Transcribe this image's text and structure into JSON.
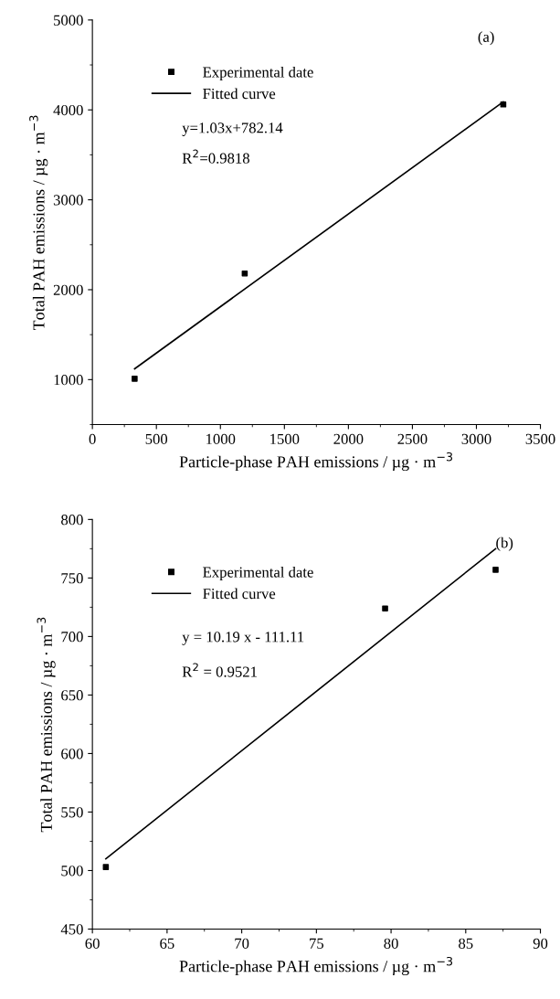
{
  "chart_data": [
    {
      "type": "scatter",
      "xlabel": "Particle-phase PAH emissions / µg · m$^{−3}$",
      "ylabel": "Total PAH emissions / µg · m$^{−3}$",
      "xlim": [
        0,
        3500
      ],
      "xticks": [
        0,
        500,
        1000,
        1500,
        2000,
        2500,
        3000,
        3500
      ],
      "ylim": [
        500,
        5000
      ],
      "yticks": [
        1000,
        2000,
        3000,
        4000,
        5000
      ],
      "grid": false,
      "legend": "top left",
      "series": [
        {
          "name": "Experimental date",
          "marker": "square",
          "color": "#000000",
          "x": [
            330,
            1190,
            3210
          ],
          "values": [
            1010,
            2180,
            4060
          ]
        },
        {
          "name": "Fitted curve",
          "type": "line",
          "marker": "none",
          "color": "#000000",
          "x": [
            330,
            3210
          ],
          "values": [
            1120,
            4090
          ]
        }
      ],
      "annotations": [
        "y=1.03x+782.14",
        "R$^{2}$=0.9818",
        "(a)"
      ]
    },
    {
      "type": "scatter",
      "xlabel": "Particle-phase PAH emissions / µg · m$^{−3}$",
      "ylabel": "Total PAH emissions / µg · m$^{−3}$",
      "xlim": [
        60,
        90
      ],
      "xticks": [
        60,
        65,
        70,
        75,
        80,
        85,
        90
      ],
      "ylim": [
        450,
        800
      ],
      "yticks": [
        450,
        500,
        550,
        600,
        650,
        700,
        750,
        800
      ],
      "grid": false,
      "legend": "top left",
      "series": [
        {
          "name": "Experimental date",
          "marker": "square",
          "color": "#000000",
          "x": [
            60.9,
            79.6,
            87.0
          ],
          "values": [
            503,
            724,
            757
          ]
        },
        {
          "name": "Fitted curve",
          "type": "line",
          "marker": "none",
          "color": "#000000",
          "x": [
            60.9,
            87.0
          ],
          "values": [
            510,
            775
          ]
        }
      ],
      "annotations": [
        "y = 10.19 x - 111.11",
        "R$^{2}$ = 0.9521",
        "(b)"
      ]
    }
  ]
}
